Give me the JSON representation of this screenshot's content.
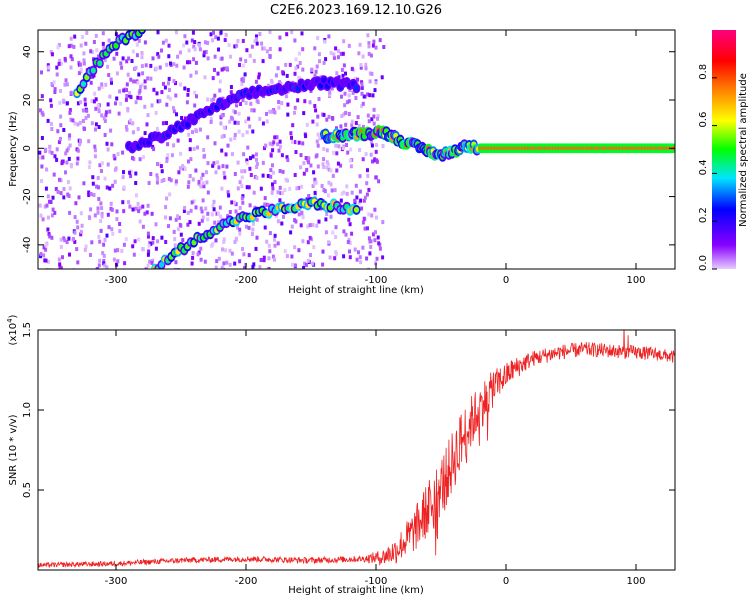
{
  "figure_title": "C2E6.2023.169.12.10.G26",
  "colors": {
    "snr_line": "#ee2222",
    "axis": "#000000",
    "background": "#ffffff"
  },
  "chart_data": [
    {
      "type": "heatmap",
      "xlabel": "Height of straight line (km)",
      "ylabel": "Frequency (Hz)",
      "xlim": [
        -360,
        130
      ],
      "ylim": [
        -50,
        49
      ],
      "x_ticks": [
        -300,
        -200,
        -100,
        0,
        100
      ],
      "y_ticks": [
        -40,
        -20,
        0,
        20,
        40
      ],
      "colorbar": {
        "label": "Normalized spectral amplitude",
        "range": [
          0,
          1
        ],
        "ticks": [
          "0.0",
          "0.2",
          "0.4",
          "0.6",
          "0.8"
        ],
        "tick_values": [
          0.0,
          0.2,
          0.4,
          0.6,
          0.8
        ],
        "colors": [
          "#e6ccff",
          "#8800ff",
          "#0000ff",
          "#00e5ff",
          "#00ff00",
          "#ffff00",
          "#ff8000",
          "#ff0000",
          "#ff0080"
        ]
      },
      "traces": [
        {
          "points": [
            [
              -330,
              22
            ],
            [
              -320,
              31
            ],
            [
              -305,
              41
            ],
            [
              -292,
              46
            ],
            [
              -280,
              49
            ]
          ],
          "level": 0.55
        },
        {
          "points": [
            [
              -270,
              -50
            ],
            [
              -250,
              -42
            ],
            [
              -230,
              -35
            ],
            [
              -210,
              -30
            ],
            [
              -190,
              -27
            ],
            [
              -170,
              -25
            ],
            [
              -150,
              -23
            ],
            [
              -130,
              -24
            ],
            [
              -115,
              -26
            ]
          ],
          "level": 0.6
        },
        {
          "points": [
            [
              -290,
              0
            ],
            [
              -265,
              5
            ],
            [
              -240,
              12
            ],
            [
              -220,
              18
            ],
            [
              -195,
              23
            ],
            [
              -170,
              25
            ],
            [
              -140,
              27
            ],
            [
              -115,
              26
            ]
          ],
          "level": 0.25
        },
        {
          "points": [
            [
              -140,
              5
            ],
            [
              -110,
              6
            ],
            [
              -95,
              7
            ],
            [
              -80,
              3
            ],
            [
              -65,
              0
            ],
            [
              -50,
              -3
            ],
            [
              -40,
              -1
            ],
            [
              -30,
              1
            ],
            [
              -20,
              0
            ],
            [
              130,
              0
            ]
          ],
          "level": 0.7
        }
      ]
    },
    {
      "type": "line",
      "xlabel": "Height of straight line (km)",
      "ylabel": "SNR (10 * v/v)",
      "y_multiplier": "(x10",
      "y_multiplier_exp": "4",
      "y_multiplier_close": ")",
      "xlim": [
        -360,
        130
      ],
      "ylim": [
        0,
        1.5
      ],
      "x_ticks": [
        -300,
        -200,
        -100,
        0,
        100
      ],
      "y_ticks": [
        "0.5",
        "1.0",
        "1.5"
      ],
      "y_tick_values": [
        0.5,
        1.0,
        1.5
      ],
      "series_profile": [
        [
          -360,
          0.03
        ],
        [
          -300,
          0.04
        ],
        [
          -250,
          0.06
        ],
        [
          -200,
          0.07
        ],
        [
          -150,
          0.06
        ],
        [
          -110,
          0.07
        ],
        [
          -95,
          0.08
        ],
        [
          -85,
          0.12
        ],
        [
          -70,
          0.25
        ],
        [
          -55,
          0.45
        ],
        [
          -45,
          0.6
        ],
        [
          -35,
          0.8
        ],
        [
          -25,
          0.95
        ],
        [
          -15,
          1.08
        ],
        [
          -5,
          1.18
        ],
        [
          5,
          1.25
        ],
        [
          20,
          1.32
        ],
        [
          40,
          1.36
        ],
        [
          60,
          1.38
        ],
        [
          80,
          1.37
        ],
        [
          100,
          1.36
        ],
        [
          115,
          1.35
        ],
        [
          130,
          1.33
        ]
      ],
      "noise_profile": [
        [
          -360,
          0.015
        ],
        [
          -110,
          0.02
        ],
        [
          -95,
          0.05
        ],
        [
          -80,
          0.1
        ],
        [
          -60,
          0.18
        ],
        [
          -40,
          0.2
        ],
        [
          -20,
          0.15
        ],
        [
          0,
          0.08
        ],
        [
          20,
          0.05
        ],
        [
          130,
          0.04
        ]
      ]
    }
  ]
}
